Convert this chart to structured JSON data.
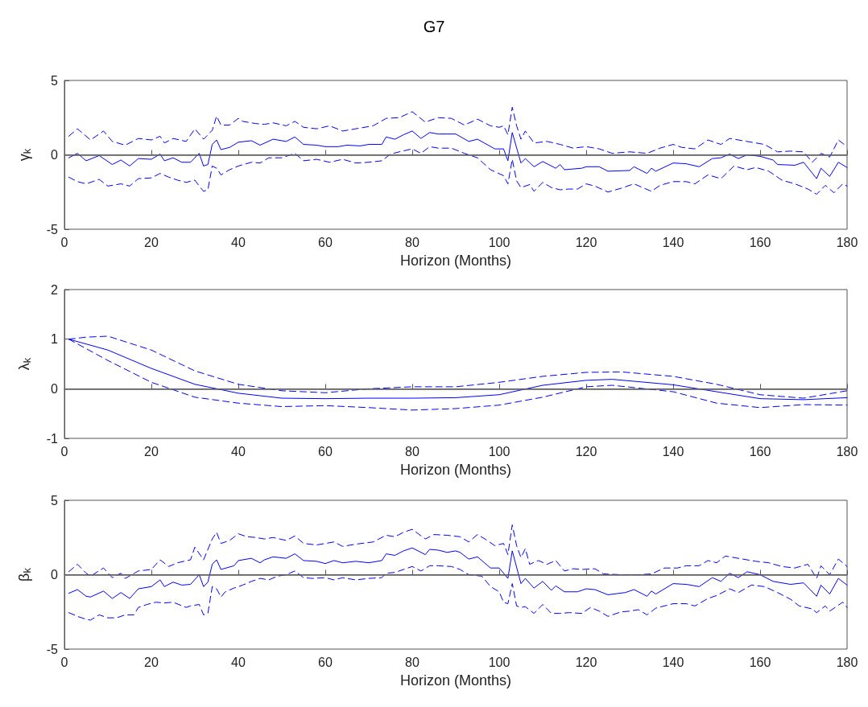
{
  "chart_data": [
    {
      "type": "line",
      "title": "G7",
      "xlabel": "Horizon (Months)",
      "ylabel": "γ$_{k}$",
      "xlim": [
        0,
        180
      ],
      "xticks": [
        0,
        20,
        40,
        60,
        80,
        100,
        120,
        140,
        160,
        180
      ],
      "ylim": [
        -5,
        5
      ],
      "yticks": [
        -5,
        0,
        5
      ],
      "marker": "none",
      "ref_lines": [
        {
          "axis": "y",
          "value": 0,
          "color": "#606060"
        }
      ],
      "series": [
        {
          "color": "#0000ff",
          "line_style": "solid",
          "x": [
            1,
            3,
            5,
            8,
            11,
            13,
            15,
            17,
            20,
            22,
            23,
            25,
            27,
            29,
            31,
            32,
            33,
            34,
            35,
            36,
            38,
            40,
            43,
            45,
            48,
            51,
            53,
            55,
            58,
            60,
            63,
            65,
            68,
            70,
            73,
            74,
            76,
            78,
            80,
            82,
            84,
            86,
            88,
            90,
            93,
            95,
            99,
            101,
            102,
            103,
            105,
            106,
            108,
            110,
            113,
            114,
            115,
            119,
            120,
            123,
            125,
            130,
            131,
            134,
            135,
            136,
            140,
            143,
            146,
            149,
            151,
            153,
            155,
            157,
            160,
            163,
            164,
            168,
            170,
            173,
            174,
            176,
            178,
            180
          ],
          "values": [
            -0.2,
            0.1,
            -0.4,
            -0.05,
            -0.65,
            -0.35,
            -0.75,
            -0.25,
            -0.3,
            0.05,
            -0.4,
            -0.2,
            -0.5,
            -0.5,
            0.1,
            -0.75,
            -0.65,
            0.7,
            1.0,
            0.35,
            0.5,
            0.85,
            0.95,
            0.65,
            1.05,
            0.9,
            1.2,
            0.7,
            0.65,
            0.55,
            0.55,
            0.65,
            0.6,
            0.7,
            0.7,
            1.2,
            1.05,
            1.35,
            1.6,
            1.1,
            1.5,
            1.4,
            1.4,
            1.4,
            0.9,
            1.05,
            0.4,
            0.4,
            -0.4,
            1.5,
            -0.55,
            -0.25,
            -0.8,
            -0.45,
            -0.9,
            -0.65,
            -1.0,
            -0.9,
            -0.8,
            -0.8,
            -1.1,
            -1.05,
            -0.8,
            -1.25,
            -0.9,
            -1.1,
            -0.55,
            -0.6,
            -0.8,
            -0.25,
            -0.2,
            0.05,
            -0.25,
            0,
            -0.1,
            -0.35,
            -0.65,
            -0.7,
            -0.5,
            -1.6,
            -0.9,
            -1.45,
            -0.5,
            -0.85
          ]
        },
        {
          "color": "#0000ff",
          "line_style": "dashed",
          "x": [
            1,
            3,
            6,
            9,
            11,
            14,
            17,
            20,
            22,
            23,
            25,
            28,
            30,
            32,
            34,
            35,
            36,
            38,
            40,
            41,
            44,
            46,
            48,
            51,
            53,
            55,
            58,
            61,
            64,
            67,
            71,
            74,
            77,
            80,
            83,
            86,
            89,
            92,
            95,
            98,
            100,
            101,
            102,
            103,
            104,
            105,
            106,
            108,
            111,
            114,
            117,
            120,
            123,
            126,
            130,
            134,
            137,
            140,
            142,
            145,
            148,
            151,
            153,
            157,
            161,
            164,
            167,
            170,
            172,
            174,
            176,
            178,
            180
          ],
          "values": [
            1.25,
            1.75,
            1.0,
            1.6,
            0.9,
            0.65,
            1.1,
            1.0,
            1.25,
            0.8,
            1.1,
            0.9,
            1.75,
            1.05,
            1.65,
            2.6,
            2.0,
            2.0,
            2.45,
            2.25,
            2.1,
            2.05,
            2.15,
            1.95,
            2.25,
            1.85,
            1.75,
            1.95,
            1.6,
            1.75,
            1.95,
            2.45,
            2.5,
            2.9,
            2.2,
            2.5,
            2.45,
            2.0,
            2.4,
            1.95,
            1.85,
            1.95,
            1.35,
            3.2,
            1.95,
            1.05,
            1.6,
            0.8,
            0.9,
            0.7,
            0.45,
            0.55,
            0.4,
            0.1,
            0.2,
            0.1,
            0.45,
            0.7,
            0.5,
            0.4,
            1.0,
            0.7,
            1.1,
            0.9,
            0.7,
            0.2,
            0.25,
            0.2,
            -0.5,
            0.1,
            -0.15,
            1.0,
            0.55
          ]
        },
        {
          "color": "#0000ff",
          "line_style": "dashed",
          "x": [
            1,
            3,
            5,
            8,
            10,
            13,
            15,
            17,
            20,
            22,
            24,
            26,
            28,
            30,
            31,
            32,
            33,
            34,
            35,
            36,
            38,
            40,
            43,
            45,
            47,
            50,
            53,
            55,
            58,
            61,
            64,
            67,
            70,
            73,
            75,
            77,
            80,
            82,
            84,
            86,
            89,
            92,
            95,
            98,
            101,
            102,
            103,
            104,
            105,
            107,
            108,
            110,
            112,
            114,
            116,
            118,
            120,
            122,
            125,
            128,
            131,
            133,
            135,
            137,
            140,
            143,
            145,
            148,
            151,
            154,
            157,
            159,
            162,
            165,
            168,
            171,
            173,
            175,
            177,
            179,
            180
          ],
          "values": [
            -1.5,
            -1.8,
            -1.95,
            -1.65,
            -2.1,
            -1.95,
            -2.1,
            -1.6,
            -1.55,
            -1.25,
            -1.5,
            -1.7,
            -1.85,
            -1.7,
            -2.1,
            -2.45,
            -2.35,
            -0.75,
            -0.9,
            -1.35,
            -1.0,
            -0.75,
            -0.5,
            -0.55,
            -0.2,
            -0.2,
            0.1,
            -0.4,
            -0.3,
            -0.5,
            -0.3,
            -0.55,
            -0.5,
            -0.4,
            0.05,
            0.2,
            0.4,
            0.1,
            0.55,
            0.45,
            0.45,
            0.1,
            -0.2,
            -1.0,
            -1.4,
            -1.95,
            -0.3,
            -1.75,
            -2.2,
            -2.0,
            -2.45,
            -1.85,
            -2.2,
            -2.35,
            -2.3,
            -2.3,
            -1.95,
            -2.1,
            -2.5,
            -2.25,
            -1.95,
            -2.2,
            -2.45,
            -2.05,
            -1.8,
            -1.8,
            -1.95,
            -1.35,
            -1.6,
            -0.75,
            -1.0,
            -0.85,
            -1.1,
            -1.7,
            -1.95,
            -2.3,
            -2.65,
            -2.05,
            -2.55,
            -1.95,
            -2.1
          ]
        }
      ]
    },
    {
      "type": "line",
      "xlabel": "Horizon (Months)",
      "ylabel": "λ$_{k}$",
      "xlim": [
        0,
        180
      ],
      "xticks": [
        0,
        20,
        40,
        60,
        80,
        100,
        120,
        140,
        160,
        180
      ],
      "ylim": [
        -1,
        2
      ],
      "yticks": [
        -1,
        0,
        1,
        2
      ],
      "marker": "none",
      "ref_lines": [
        {
          "axis": "y",
          "value": 0,
          "color": "#606060"
        }
      ],
      "series": [
        {
          "color": "#0000ff",
          "line_style": "solid",
          "x": [
            1,
            10,
            20,
            30,
            40,
            50,
            60,
            70,
            80,
            90,
            100,
            110,
            120,
            126,
            140,
            150,
            160,
            170,
            180
          ],
          "values": [
            1.0,
            0.78,
            0.41,
            0.09,
            -0.09,
            -0.19,
            -0.2,
            -0.19,
            -0.19,
            -0.18,
            -0.12,
            0.07,
            0.17,
            0.19,
            0.08,
            -0.06,
            -0.2,
            -0.22,
            -0.18
          ]
        },
        {
          "color": "#0000ff",
          "line_style": "dashed",
          "x": [
            1,
            5,
            10,
            20,
            30,
            40,
            50,
            60,
            70,
            80,
            90,
            100,
            110,
            120,
            128,
            140,
            150,
            160,
            170,
            180
          ],
          "values": [
            1.0,
            1.04,
            1.06,
            0.78,
            0.36,
            0.09,
            -0.04,
            -0.08,
            0,
            0.04,
            0.04,
            0.13,
            0.25,
            0.33,
            0.34,
            0.25,
            0.09,
            -0.12,
            -0.19,
            -0.04
          ]
        },
        {
          "color": "#0000ff",
          "line_style": "dashed",
          "x": [
            1,
            10,
            20,
            30,
            40,
            50,
            60,
            70,
            80,
            90,
            100,
            110,
            120,
            126,
            140,
            150,
            160,
            170,
            180
          ],
          "values": [
            1.0,
            0.57,
            0.13,
            -0.17,
            -0.29,
            -0.36,
            -0.34,
            -0.38,
            -0.43,
            -0.4,
            -0.33,
            -0.17,
            0.04,
            0.07,
            -0.06,
            -0.29,
            -0.38,
            -0.32,
            -0.33
          ]
        }
      ]
    },
    {
      "type": "line",
      "xlabel": "Horizon (Months)",
      "ylabel": "β$_{k}$",
      "xlim": [
        0,
        180
      ],
      "xticks": [
        0,
        20,
        40,
        60,
        80,
        100,
        120,
        140,
        160,
        180
      ],
      "ylim": [
        -5,
        5
      ],
      "yticks": [
        -5,
        0,
        5
      ],
      "marker": "none",
      "ref_lines": [
        {
          "axis": "y",
          "value": 0,
          "color": "#606060"
        }
      ],
      "series": [
        {
          "color": "#0000ff",
          "line_style": "solid",
          "x": [
            1,
            3,
            5,
            6,
            9,
            11,
            13,
            15,
            17,
            20,
            22,
            23,
            25,
            27,
            29,
            31,
            32,
            33,
            34,
            35,
            36,
            39,
            40,
            43,
            45,
            46,
            48,
            51,
            53,
            55,
            58,
            60,
            62,
            64,
            67,
            70,
            73,
            74,
            76,
            78,
            80,
            83,
            84,
            86,
            88,
            90,
            91,
            93,
            95,
            98,
            100,
            102,
            103,
            105,
            106,
            108,
            110,
            112,
            113,
            115,
            118,
            120,
            122,
            125,
            129,
            131,
            134,
            135,
            136,
            140,
            143,
            146,
            149,
            151,
            153,
            155,
            157,
            160,
            163,
            167,
            170,
            173,
            174,
            176,
            178,
            180
          ],
          "values": [
            -1.25,
            -1.0,
            -1.45,
            -1.5,
            -1.1,
            -1.6,
            -1.2,
            -1.6,
            -0.95,
            -0.8,
            -0.35,
            -0.8,
            -0.5,
            -0.7,
            -0.65,
            0,
            -0.8,
            -0.5,
            0.7,
            1.0,
            0.35,
            0.6,
            0.95,
            1.1,
            0.8,
            1.0,
            1.2,
            1.1,
            1.4,
            0.95,
            0.9,
            0.75,
            0.95,
            0.8,
            0.9,
            0.8,
            0.95,
            1.4,
            1.3,
            1.6,
            1.8,
            1.35,
            1.7,
            1.65,
            1.5,
            1.6,
            1.5,
            1.05,
            1.2,
            0.45,
            0.45,
            -0.25,
            1.6,
            -0.6,
            -0.25,
            -0.9,
            -0.45,
            -1.05,
            -0.75,
            -1.15,
            -1.15,
            -0.95,
            -1.0,
            -1.35,
            -1.2,
            -1.0,
            -1.45,
            -1.1,
            -1.3,
            -0.6,
            -0.65,
            -0.8,
            -0.2,
            -0.45,
            0.1,
            -0.2,
            0.2,
            0,
            -0.45,
            -0.65,
            -0.55,
            -1.45,
            -0.7,
            -1.3,
            -0.25,
            -0.7
          ]
        },
        {
          "color": "#0000ff",
          "line_style": "dashed",
          "x": [
            1,
            3,
            5,
            6,
            9,
            11,
            13,
            14,
            17,
            20,
            22,
            24,
            26,
            29,
            30,
            32,
            34,
            35,
            36,
            38,
            40,
            42,
            44,
            46,
            48,
            51,
            53,
            55,
            58,
            60,
            62,
            64,
            67,
            71,
            74,
            76,
            78,
            80,
            83,
            85,
            88,
            91,
            93,
            95,
            97,
            99,
            101,
            102,
            103,
            104,
            105,
            106,
            107,
            109,
            111,
            113,
            115,
            117,
            119,
            122,
            124,
            128,
            132,
            135,
            138,
            141,
            143,
            146,
            148,
            150,
            152,
            156,
            159,
            162,
            165,
            168,
            171,
            173,
            174,
            176,
            178,
            180
          ],
          "values": [
            0.2,
            0.7,
            0.1,
            -0.1,
            0.45,
            -0.2,
            0.1,
            -0.25,
            0.25,
            0.35,
            1.0,
            0.55,
            0.8,
            1.0,
            1.85,
            1.0,
            2.4,
            2.85,
            2.1,
            2.3,
            2.75,
            2.55,
            2.5,
            2.4,
            2.5,
            2.3,
            2.6,
            2.1,
            2.0,
            2.1,
            2.2,
            1.9,
            2.05,
            2.2,
            2.65,
            2.55,
            2.85,
            3.05,
            2.4,
            2.7,
            2.65,
            2.55,
            2.2,
            2.7,
            2.35,
            1.95,
            2.1,
            1.35,
            3.35,
            1.95,
            1.15,
            1.75,
            0.7,
            0.95,
            0.7,
            0.95,
            0.25,
            0.4,
            0.35,
            0.4,
            0.05,
            0,
            0,
            0.05,
            0.45,
            0.45,
            0.6,
            0.6,
            0.95,
            0.8,
            1.25,
            1.05,
            0.9,
            0.8,
            0.55,
            0.45,
            0.7,
            -0.25,
            0.6,
            0,
            1.05,
            0.55
          ]
        },
        {
          "color": "#0000ff",
          "line_style": "dashed",
          "x": [
            1,
            3,
            5,
            6,
            8,
            10,
            12,
            14,
            16,
            17,
            19,
            21,
            23,
            25,
            28,
            29,
            31,
            32,
            33,
            34,
            35,
            36,
            37,
            39,
            41,
            43,
            45,
            47,
            49,
            51,
            53,
            55,
            57,
            60,
            62,
            64,
            67,
            70,
            73,
            74,
            76,
            78,
            80,
            82,
            84,
            86,
            89,
            91,
            93,
            96,
            98,
            100,
            101,
            102,
            103,
            104,
            105,
            106,
            108,
            110,
            112,
            114,
            116,
            119,
            121,
            123,
            125,
            128,
            130,
            132,
            134,
            136,
            138,
            140,
            143,
            145,
            148,
            150,
            153,
            155,
            158,
            161,
            164,
            167,
            169,
            172,
            173,
            175,
            176,
            179,
            180
          ],
          "values": [
            -2.55,
            -2.8,
            -3.0,
            -3.05,
            -2.7,
            -2.9,
            -2.9,
            -2.7,
            -2.7,
            -2.2,
            -2.0,
            -1.85,
            -1.9,
            -1.85,
            -2.2,
            -2.1,
            -2.0,
            -2.7,
            -2.6,
            -0.8,
            -0.95,
            -1.5,
            -1.15,
            -0.9,
            -0.7,
            -0.45,
            -0.25,
            -0.35,
            -0.1,
            0,
            0.25,
            -0.2,
            -0.25,
            -0.2,
            -0.35,
            -0.2,
            -0.35,
            -0.25,
            -0.2,
            0.1,
            0.15,
            0.35,
            0.55,
            0.25,
            0.6,
            0.6,
            0.55,
            0.35,
            0,
            -0.1,
            -0.8,
            -1.15,
            -1.85,
            -1.95,
            -0.6,
            -2.1,
            -2.2,
            -2.15,
            -2.6,
            -2.0,
            -2.6,
            -2.6,
            -2.55,
            -2.6,
            -2.2,
            -2.45,
            -2.8,
            -2.5,
            -2.45,
            -2.35,
            -2.7,
            -2.25,
            -2.1,
            -1.95,
            -1.95,
            -2.1,
            -1.6,
            -1.4,
            -0.95,
            -1.2,
            -0.7,
            -0.8,
            -1.2,
            -1.65,
            -2.1,
            -2.3,
            -2.55,
            -2.1,
            -2.45,
            -1.85,
            -2.2
          ]
        }
      ]
    }
  ]
}
